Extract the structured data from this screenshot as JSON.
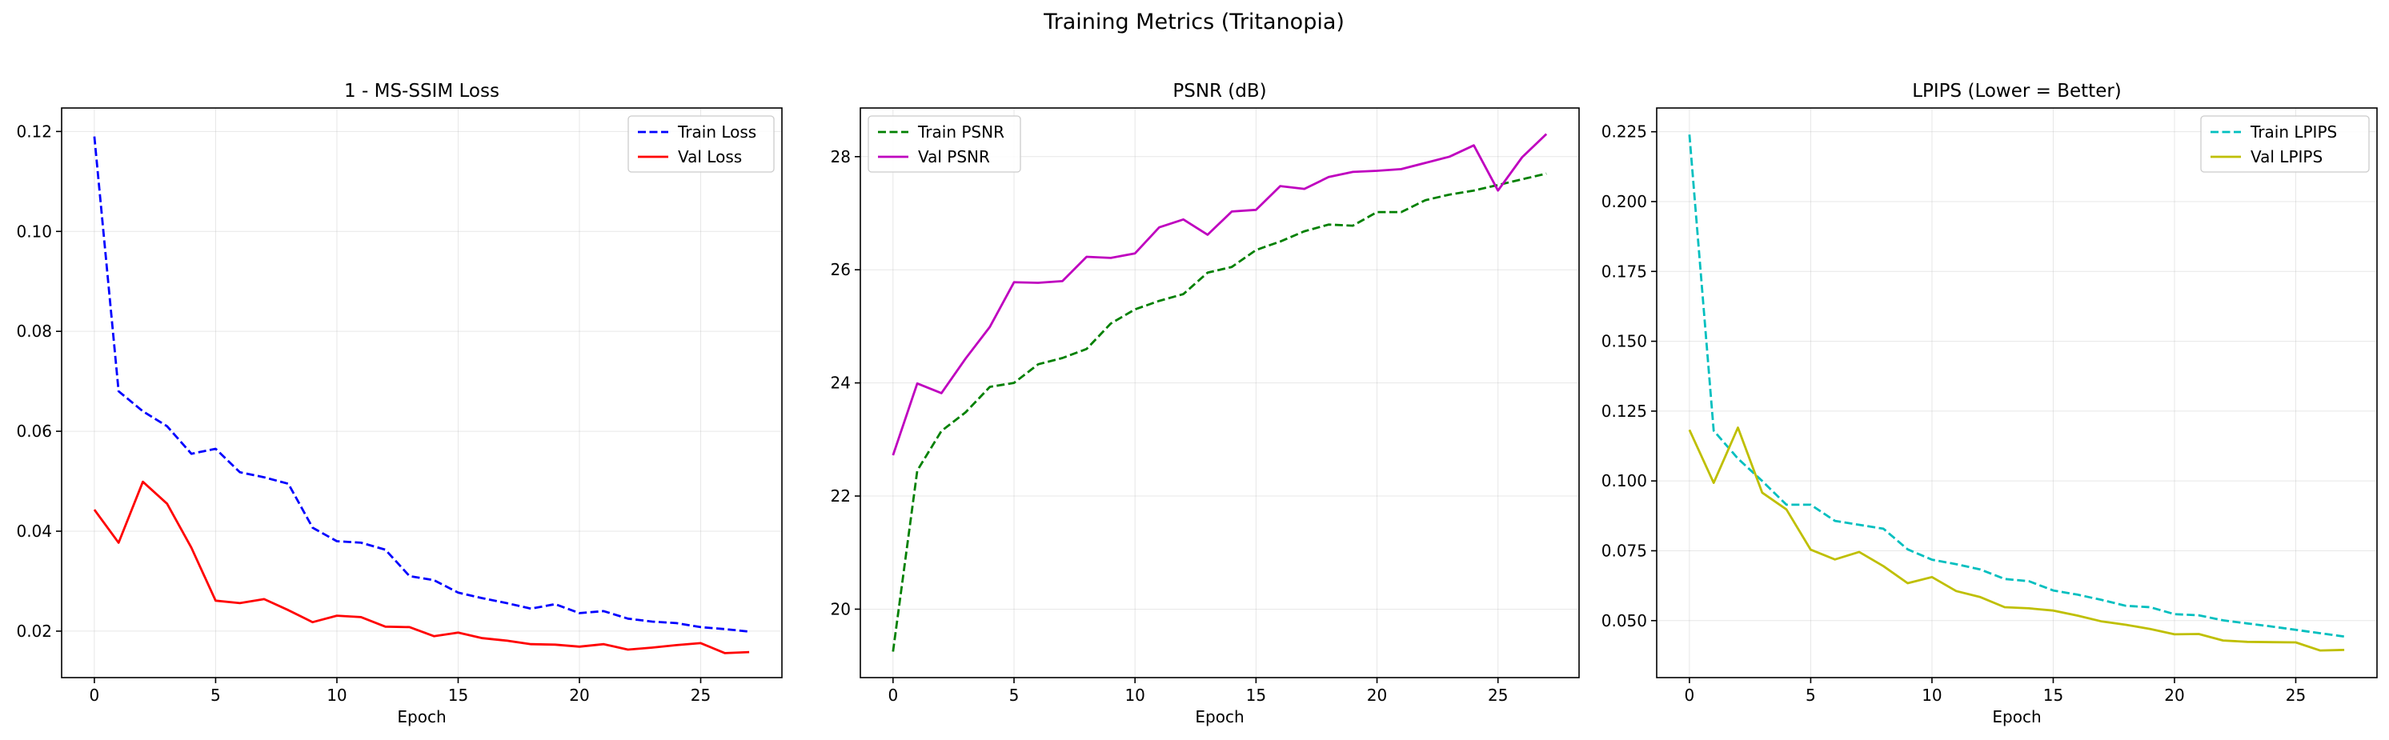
{
  "figure": {
    "title": "Training Metrics (Tritanopia)"
  },
  "chart_data": [
    {
      "type": "line",
      "title": "1 - MS-SSIM Loss",
      "xlabel": "Epoch",
      "ylabel": "",
      "xlim": [
        -1.35,
        28.35
      ],
      "ylim": [
        0.0107,
        0.1247
      ],
      "xticks": [
        0,
        5,
        10,
        15,
        20,
        25
      ],
      "yticks": [
        0.02,
        0.04,
        0.06,
        0.08,
        0.1,
        0.12
      ],
      "ytick_labels": [
        "0.02",
        "0.04",
        "0.06",
        "0.08",
        "0.10",
        "0.12"
      ],
      "grid": true,
      "legend_position": "upper right",
      "x": [
        0,
        1,
        2,
        3,
        4,
        5,
        6,
        7,
        8,
        9,
        10,
        11,
        12,
        13,
        14,
        15,
        16,
        17,
        18,
        19,
        20,
        21,
        22,
        23,
        24,
        25,
        26,
        27
      ],
      "series": [
        {
          "name": "Train Loss",
          "color": "#0000ff",
          "dash": "dashed",
          "values": [
            0.119,
            0.068,
            0.064,
            0.061,
            0.0555,
            0.0565,
            0.0518,
            0.0508,
            0.0495,
            0.0407,
            0.038,
            0.0377,
            0.0363,
            0.031,
            0.0302,
            0.0277,
            0.0266,
            0.0256,
            0.0245,
            0.0254,
            0.0236,
            0.024,
            0.0225,
            0.0219,
            0.0216,
            0.0208,
            0.0204,
            0.0199
          ]
        },
        {
          "name": "Val Loss",
          "color": "#ff0000",
          "dash": "solid",
          "values": [
            0.0443,
            0.0377,
            0.0499,
            0.0455,
            0.0367,
            0.0261,
            0.0256,
            0.0264,
            0.0242,
            0.0218,
            0.0231,
            0.0228,
            0.0209,
            0.0208,
            0.019,
            0.0197,
            0.0186,
            0.0181,
            0.0174,
            0.0173,
            0.0169,
            0.0174,
            0.0163,
            0.0167,
            0.0172,
            0.0176,
            0.0156,
            0.0158
          ]
        }
      ]
    },
    {
      "type": "line",
      "title": "PSNR (dB)",
      "xlabel": "Epoch",
      "ylabel": "",
      "xlim": [
        -1.35,
        28.35
      ],
      "ylim": [
        18.79,
        28.86
      ],
      "xticks": [
        0,
        5,
        10,
        15,
        20,
        25
      ],
      "yticks": [
        20,
        22,
        24,
        26,
        28
      ],
      "ytick_labels": [
        "20",
        "22",
        "24",
        "26",
        "28"
      ],
      "grid": true,
      "legend_position": "upper left",
      "x": [
        0,
        1,
        2,
        3,
        4,
        5,
        6,
        7,
        8,
        9,
        10,
        11,
        12,
        13,
        14,
        15,
        16,
        17,
        18,
        19,
        20,
        21,
        22,
        23,
        24,
        25,
        26,
        27
      ],
      "series": [
        {
          "name": "Train PSNR",
          "color": "#008000",
          "dash": "dashed",
          "values": [
            19.25,
            22.45,
            23.15,
            23.48,
            23.93,
            24.0,
            24.33,
            24.44,
            24.6,
            25.05,
            25.3,
            25.45,
            25.57,
            25.95,
            26.05,
            26.35,
            26.5,
            26.68,
            26.8,
            26.78,
            27.02,
            27.02,
            27.23,
            27.33,
            27.4,
            27.5,
            27.6,
            27.7
          ]
        },
        {
          "name": "Val PSNR",
          "color": "#bf00bf",
          "dash": "solid",
          "values": [
            22.72,
            23.99,
            23.82,
            24.43,
            24.99,
            25.78,
            25.77,
            25.8,
            26.23,
            26.21,
            26.29,
            26.75,
            26.89,
            26.62,
            27.03,
            27.06,
            27.48,
            27.43,
            27.64,
            27.73,
            27.75,
            27.78,
            27.89,
            28.0,
            28.2,
            27.4,
            27.99,
            28.4
          ]
        }
      ]
    },
    {
      "type": "line",
      "title": "LPIPS (Lower = Better)",
      "xlabel": "Epoch",
      "ylabel": "",
      "xlim": [
        -1.35,
        28.35
      ],
      "ylim": [
        0.0296,
        0.2335
      ],
      "xticks": [
        0,
        5,
        10,
        15,
        20,
        25
      ],
      "yticks": [
        0.05,
        0.075,
        0.1,
        0.125,
        0.15,
        0.175,
        0.2,
        0.225
      ],
      "ytick_labels": [
        "0.050",
        "0.075",
        "0.100",
        "0.125",
        "0.150",
        "0.175",
        "0.200",
        "0.225"
      ],
      "grid": true,
      "legend_position": "upper right",
      "x": [
        0,
        1,
        2,
        3,
        4,
        5,
        6,
        7,
        8,
        9,
        10,
        11,
        12,
        13,
        14,
        15,
        16,
        17,
        18,
        19,
        20,
        21,
        22,
        23,
        24,
        25,
        26,
        27
      ],
      "series": [
        {
          "name": "Train LPIPS",
          "color": "#00bfbf",
          "dash": "dashed",
          "values": [
            0.224,
            0.118,
            0.108,
            0.1,
            0.0915,
            0.0915,
            0.0857,
            0.0843,
            0.0829,
            0.0755,
            0.0718,
            0.0702,
            0.0683,
            0.0649,
            0.0641,
            0.0608,
            0.0593,
            0.0574,
            0.0553,
            0.0548,
            0.0523,
            0.0519,
            0.0501,
            0.049,
            0.0479,
            0.0467,
            0.0455,
            0.0443
          ]
        },
        {
          "name": "Val LPIPS",
          "color": "#bfbf00",
          "dash": "solid",
          "values": [
            0.1183,
            0.0993,
            0.1191,
            0.0958,
            0.0898,
            0.0754,
            0.0719,
            0.0746,
            0.0695,
            0.0634,
            0.0656,
            0.0606,
            0.0584,
            0.0548,
            0.0544,
            0.0536,
            0.0518,
            0.0497,
            0.0485,
            0.047,
            0.0451,
            0.0452,
            0.0429,
            0.0424,
            0.0423,
            0.0422,
            0.0393,
            0.0395
          ]
        }
      ]
    }
  ]
}
